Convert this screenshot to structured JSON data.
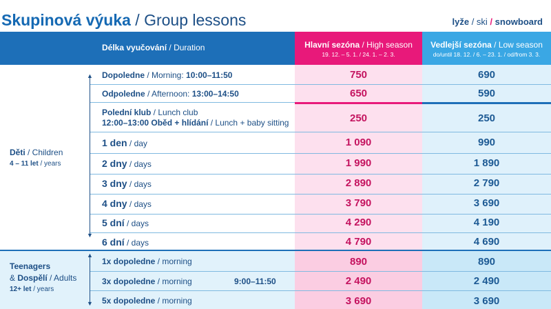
{
  "title": {
    "bold": "Skupinová výuka",
    "rest": " / Group lessons"
  },
  "sport": {
    "ski_cz": "lyže",
    "ski_en": " / ski ",
    "slash": "/",
    "snowboard": " snowboard"
  },
  "header": {
    "duration_cz": "Délka vyučování",
    "duration_en": " / Duration",
    "high_cz": "Hlavní sezóna",
    "high_en": " / High season",
    "high_dates": "19. 12. – 5. 1. / 24. 1. – 2. 3.",
    "low_cz": "Vedlejší sezóna",
    "low_en": " / Low season",
    "low_dates": "do/until 18. 12. / 6. – 23. 1. / od/from 3. 3."
  },
  "groups": {
    "children_cz": "Děti",
    "children_en": " / Children",
    "children_age": "4 – 11 let",
    "children_age_en": " / years",
    "teen_line1": "Teenagers",
    "teen_amp": "& ",
    "teen_cz": "Dospělí",
    "teen_en": " / Adults",
    "teen_age": "12+ let",
    "teen_age_en": " / years"
  },
  "rows": [
    {
      "cz": "Dopoledne",
      "en": " / Morning: ",
      "extra": "10:00–11:50",
      "high": "750",
      "low": "690"
    },
    {
      "cz": "Odpoledne",
      "en": " / Afternoon: ",
      "extra": "13:00–14:50",
      "high": "650",
      "low": "590"
    },
    {
      "cz": "Polední klub",
      "en": " / Lunch club",
      "line2_bold": "12:00–13:00 Oběd + hlídání",
      "line2_en": " / Lunch + baby sitting",
      "high": "250",
      "low": "250"
    },
    {
      "cz": "1 den",
      "en": " / day",
      "high": "1 090",
      "low": "990"
    },
    {
      "cz": "2 dny",
      "en": " / days",
      "high": "1 990",
      "low": "1 890"
    },
    {
      "cz": "3 dny",
      "en": " / days",
      "high": "2 890",
      "low": "2 790"
    },
    {
      "cz": "4 dny",
      "en": " / days",
      "high": "3 790",
      "low": "3 690"
    },
    {
      "cz": "5 dní",
      "en": " / days",
      "high": "4 290",
      "low": "4 190"
    },
    {
      "cz": "6 dní",
      "en": " / days",
      "high": "4 790",
      "low": "4 690"
    },
    {
      "cz": "1x dopoledne",
      "en": " / morning",
      "high": "890",
      "low": "890"
    },
    {
      "cz": "3x dopoledne",
      "en": " / morning",
      "high": "2 490",
      "low": "2 490"
    },
    {
      "cz": "5x dopoledne",
      "en": " / morning",
      "high": "3 690",
      "low": "3 690"
    }
  ],
  "teen_time": "9:00–11:50"
}
